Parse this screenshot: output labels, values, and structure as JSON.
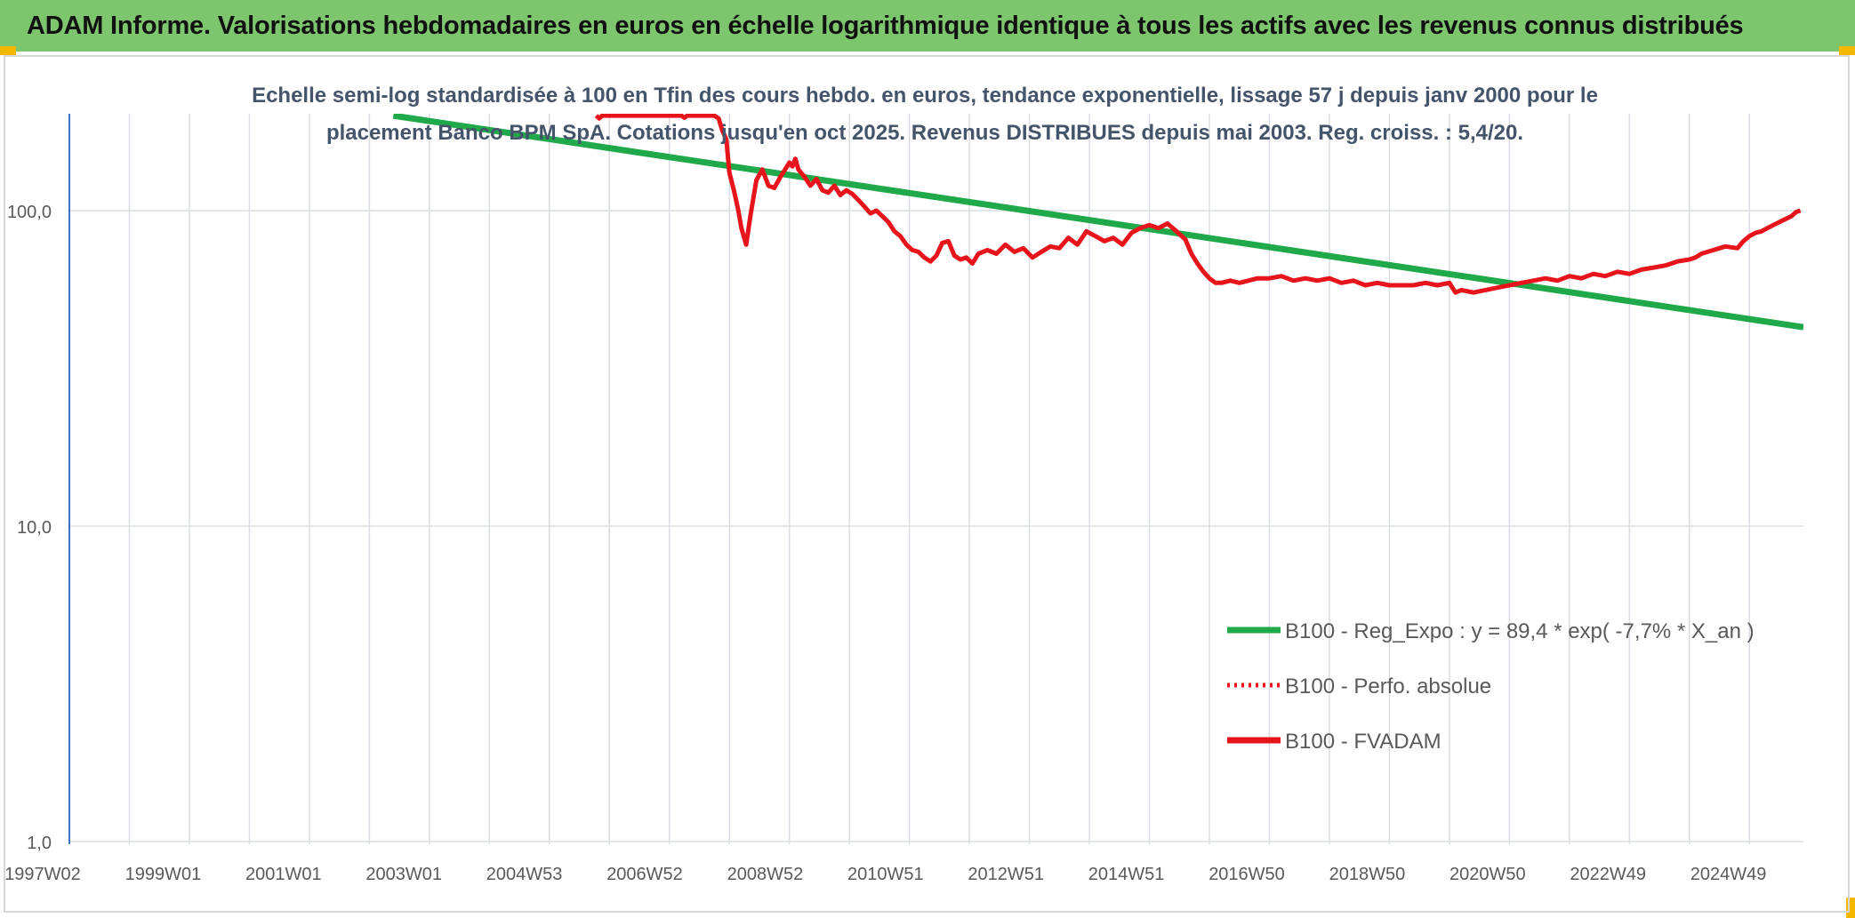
{
  "header": {
    "title": "ADAM Informe. Valorisations hebdomadaires en euros en échelle logarithmique identique à tous les actifs avec les revenus connus distribués"
  },
  "colors": {
    "banner": "#7dc66e",
    "accent_corner": "#f5b800",
    "fvadam": "#e8141b",
    "perfo": "#e8141b",
    "reg": "#1fa94a",
    "grid": "#dadde3",
    "axis": "#4472c4"
  },
  "chart_data": {
    "type": "line",
    "title_line1": "Echelle semi-log standardisée à 100 en Tfin des cours hebdo. en euros, tendance exponentielle, lissage 57 j depuis janv 2000 pour le",
    "title_line2": "placement Banco BPM SpA. Cotations jusqu'en oct 2025. Revenus DISTRIBUES depuis mai 2003. Reg. croiss. : 5,4/20.",
    "y_scale": "log",
    "ylim": [
      1,
      200
    ],
    "y_ticks": [
      {
        "value": 100,
        "label": "100,0"
      },
      {
        "value": 10,
        "label": "10,0"
      },
      {
        "value": 1,
        "label": "1,0"
      }
    ],
    "xlim": [
      1997.0,
      2025.9
    ],
    "x_ticks": [
      "1997W02",
      "1999W01",
      "2001W01",
      "2003W01",
      "2004W53",
      "2006W52",
      "2008W52",
      "2010W51",
      "2012W51",
      "2014W51",
      "2016W50",
      "2018W50",
      "2020W50",
      "2022W49",
      "2024W49"
    ],
    "x_gridlines": [
      1998.0,
      1999.0,
      2000.0,
      2001.0,
      2002.0,
      2003.0,
      2004.0,
      2005.0,
      2006.0,
      2007.0,
      2008.0,
      2009.0,
      2010.0,
      2011.0,
      2012.0,
      2013.0,
      2014.0,
      2015.0,
      2016.0,
      2017.0,
      2018.0,
      2019.0,
      2020.0,
      2021.0,
      2022.0,
      2023.0,
      2024.0,
      2025.0
    ],
    "grid": true,
    "legend_position": "bottom-right",
    "series": [
      {
        "name": "B100 - Reg_Expo : y = 89,4 * exp( -7,7% *  X_an )",
        "style": "solid-green",
        "x": [
          2002.4,
          2025.9
        ],
        "y": [
          200,
          42.7
        ]
      },
      {
        "name": "B100 - Perfo. absolue",
        "style": "dotted-red",
        "x": [],
        "y": []
      },
      {
        "name": "B100 - FVADAM",
        "style": "solid-red",
        "x": [
          2005.78,
          2005.83,
          2005.88,
          2007.2,
          2007.25,
          2007.3,
          2007.75,
          2007.82,
          2007.88,
          2007.95,
          2008.0,
          2008.08,
          2008.15,
          2008.2,
          2008.28,
          2008.35,
          2008.45,
          2008.55,
          2008.65,
          2008.75,
          2008.85,
          2008.95,
          2009.0,
          2009.05,
          2009.1,
          2009.15,
          2009.25,
          2009.35,
          2009.45,
          2009.55,
          2009.65,
          2009.75,
          2009.85,
          2009.95,
          2010.05,
          2010.15,
          2010.25,
          2010.35,
          2010.45,
          2010.55,
          2010.65,
          2010.75,
          2010.85,
          2010.95,
          2011.05,
          2011.15,
          2011.25,
          2011.35,
          2011.45,
          2011.55,
          2011.65,
          2011.75,
          2011.85,
          2011.95,
          2012.05,
          2012.15,
          2012.3,
          2012.45,
          2012.6,
          2012.75,
          2012.9,
          2013.05,
          2013.2,
          2013.35,
          2013.5,
          2013.65,
          2013.8,
          2013.95,
          2014.1,
          2014.25,
          2014.4,
          2014.55,
          2014.7,
          2014.85,
          2015.0,
          2015.15,
          2015.3,
          2015.45,
          2015.6,
          2015.7,
          2015.8,
          2015.9,
          2016.0,
          2016.1,
          2016.2,
          2016.35,
          2016.5,
          2016.65,
          2016.8,
          2017.0,
          2017.2,
          2017.4,
          2017.6,
          2017.8,
          2018.0,
          2018.2,
          2018.4,
          2018.6,
          2018.8,
          2019.0,
          2019.2,
          2019.4,
          2019.6,
          2019.8,
          2020.0,
          2020.1,
          2020.2,
          2020.4,
          2020.6,
          2020.8,
          2021.0,
          2021.2,
          2021.4,
          2021.6,
          2021.8,
          2022.0,
          2022.2,
          2022.4,
          2022.6,
          2022.8,
          2023.0,
          2023.2,
          2023.4,
          2023.6,
          2023.8,
          2024.0,
          2024.1,
          2024.2,
          2024.4,
          2024.6,
          2024.8,
          2024.9,
          2025.0,
          2025.1,
          2025.2,
          2025.3,
          2025.4,
          2025.5,
          2025.6,
          2025.7,
          2025.78,
          2025.85
        ],
        "y": [
          200,
          196,
          200,
          200,
          197,
          200,
          200,
          196,
          180,
          168,
          132,
          115,
          100,
          88,
          78,
          96,
          125,
          135,
          120,
          118,
          128,
          137,
          142,
          138,
          146,
          135,
          128,
          120,
          126,
          116,
          114,
          120,
          112,
          116,
          113,
          108,
          103,
          98,
          100,
          96,
          92,
          86,
          83,
          78,
          75,
          74,
          71,
          69,
          72,
          79,
          80,
          72,
          70,
          71,
          68,
          73,
          75,
          73,
          78,
          74,
          76,
          71,
          74,
          77,
          76,
          82,
          78,
          86,
          83,
          80,
          82,
          78,
          85,
          88,
          90,
          88,
          91,
          86,
          81,
          73,
          68,
          64,
          61,
          59,
          59,
          60,
          59,
          60,
          61,
          61,
          62,
          60,
          61,
          60,
          61,
          59,
          60,
          58,
          59,
          58,
          58,
          58,
          59,
          58,
          59,
          55,
          56,
          55,
          56,
          57,
          58,
          59,
          60,
          61,
          60,
          62,
          61,
          63,
          62,
          64,
          63,
          65,
          66,
          67,
          69,
          70,
          71,
          73,
          75,
          77,
          76,
          80,
          83,
          85,
          86,
          88,
          90,
          92,
          94,
          96,
          99,
          100
        ]
      }
    ]
  }
}
